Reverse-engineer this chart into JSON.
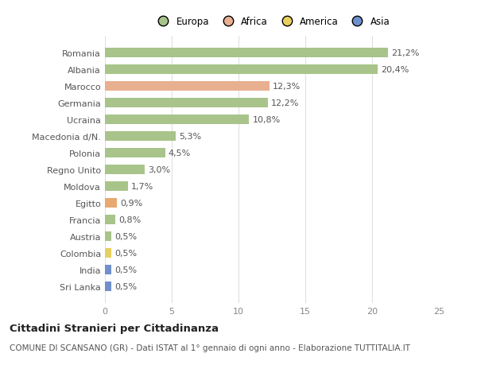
{
  "categories": [
    "Romania",
    "Albania",
    "Marocco",
    "Germania",
    "Ucraina",
    "Macedonia d/N.",
    "Polonia",
    "Regno Unito",
    "Moldova",
    "Egitto",
    "Francia",
    "Austria",
    "Colombia",
    "India",
    "Sri Lanka"
  ],
  "values": [
    21.2,
    20.4,
    12.3,
    12.2,
    10.8,
    5.3,
    4.5,
    3.0,
    1.7,
    0.9,
    0.8,
    0.5,
    0.5,
    0.5,
    0.5
  ],
  "labels": [
    "21,2%",
    "20,4%",
    "12,3%",
    "12,2%",
    "10,8%",
    "5,3%",
    "4,5%",
    "3,0%",
    "1,7%",
    "0,9%",
    "0,8%",
    "0,5%",
    "0,5%",
    "0,5%",
    "0,5%"
  ],
  "colors": [
    "#a8c48a",
    "#a8c48a",
    "#e8b090",
    "#a8c48a",
    "#a8c48a",
    "#a8c48a",
    "#a8c48a",
    "#a8c48a",
    "#a8c48a",
    "#e8a870",
    "#a8c48a",
    "#a8c48a",
    "#e8d060",
    "#7090cc",
    "#7090cc"
  ],
  "legend": {
    "Europa": "#a8c48a",
    "Africa": "#e8b090",
    "America": "#e8d060",
    "Asia": "#7090cc"
  },
  "xlim": [
    0,
    25
  ],
  "xticks": [
    0,
    5,
    10,
    15,
    20,
    25
  ],
  "title": "Cittadini Stranieri per Cittadinanza",
  "subtitle": "COMUNE DI SCANSANO (GR) - Dati ISTAT al 1° gennaio di ogni anno - Elaborazione TUTTITALIA.IT",
  "background_color": "#ffffff",
  "bar_height": 0.55,
  "grid_color": "#e0e0e0",
  "label_fontsize": 8.0,
  "tick_fontsize": 8.0,
  "title_fontsize": 9.5,
  "subtitle_fontsize": 7.5
}
